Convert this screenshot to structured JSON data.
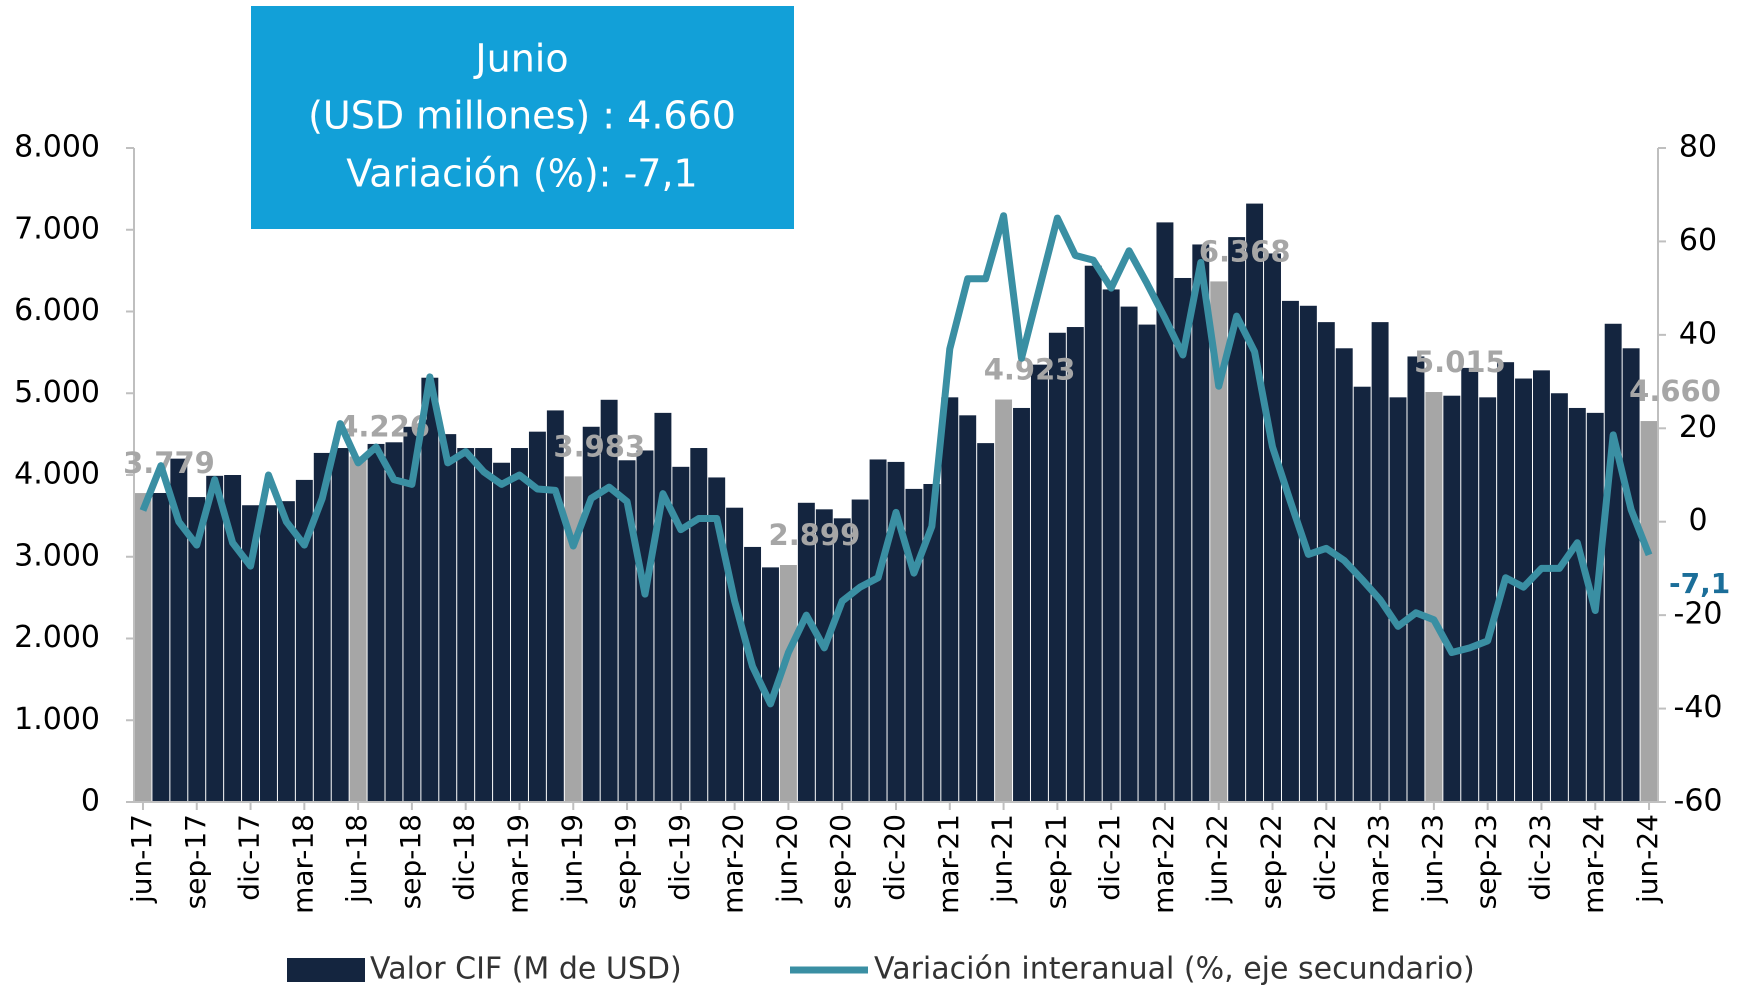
{
  "chart_data": {
    "type": "bar_line",
    "annotation": [
      "Junio",
      "(USD millones) : 4.660",
      "Variación (%): -7,1"
    ],
    "categories": [
      "jun-17",
      null,
      null,
      "sep-17",
      null,
      null,
      "dic-17",
      null,
      null,
      "mar-18",
      null,
      null,
      "jun-18",
      null,
      null,
      "sep-18",
      null,
      null,
      "dic-18",
      null,
      null,
      "mar-19",
      null,
      null,
      "jun-19",
      null,
      null,
      "sep-19",
      null,
      null,
      "dic-19",
      null,
      null,
      "mar-20",
      null,
      null,
      "jun-20",
      null,
      null,
      "sep-20",
      null,
      null,
      "dic-20",
      null,
      null,
      "mar-21",
      null,
      null,
      "jun-21",
      null,
      null,
      "sep-21",
      null,
      null,
      "dic-21",
      null,
      null,
      "mar-22",
      null,
      null,
      "jun-22",
      null,
      null,
      "sep-22",
      null,
      null,
      "dic-22",
      null,
      null,
      "mar-23",
      null,
      null,
      "jun-23",
      null,
      null,
      "sep-23",
      null,
      null,
      "dic-23",
      null,
      null,
      "mar-24",
      null,
      null,
      "jun-24"
    ],
    "series": [
      {
        "name": "Valor CIF (M de USD)",
        "color": "#14253f",
        "highlight_color": "#a6a6a6",
        "values": [
          3779,
          3780,
          4200,
          3730,
          3990,
          4000,
          3630,
          3630,
          3680,
          3940,
          4270,
          4330,
          4226,
          4380,
          4400,
          4590,
          5190,
          4500,
          4330,
          4330,
          4150,
          4330,
          4530,
          4790,
          3983,
          4590,
          4920,
          4180,
          4300,
          4760,
          4100,
          4330,
          3970,
          3600,
          3120,
          2870,
          2899,
          3660,
          3580,
          3470,
          3700,
          4190,
          4160,
          3830,
          3890,
          4950,
          4730,
          4390,
          4923,
          4820,
          5350,
          5740,
          5810,
          6560,
          6270,
          6060,
          5840,
          7090,
          6410,
          6820,
          6368,
          6910,
          7320,
          6710,
          6130,
          6070,
          5870,
          5550,
          5080,
          5870,
          4950,
          5450,
          5015,
          4970,
          5310,
          4950,
          5380,
          5180,
          5280,
          5000,
          4820,
          4760,
          5850,
          5550,
          4660
        ],
        "value_labels": [
          "3.779",
          null,
          null,
          null,
          null,
          null,
          null,
          null,
          null,
          null,
          null,
          null,
          "4.226",
          null,
          null,
          null,
          null,
          null,
          null,
          null,
          null,
          null,
          null,
          null,
          "3.983",
          null,
          null,
          null,
          null,
          null,
          null,
          null,
          null,
          null,
          null,
          null,
          "2.899",
          null,
          null,
          null,
          null,
          null,
          null,
          null,
          null,
          null,
          null,
          null,
          "4.923",
          null,
          null,
          null,
          null,
          null,
          null,
          null,
          null,
          null,
          null,
          null,
          "6.368",
          null,
          null,
          null,
          null,
          null,
          null,
          null,
          null,
          null,
          null,
          null,
          "5.015",
          null,
          null,
          null,
          null,
          null,
          null,
          null,
          null,
          null,
          null,
          null,
          "4.660"
        ]
      },
      {
        "name": "Variación interanual (%, eje secundario)",
        "color": "#3a8fa3",
        "axis": "y2",
        "values": [
          2.4,
          12,
          0,
          -5,
          9,
          -4.5,
          -9.5,
          10,
          0,
          -5,
          5,
          21,
          12.6,
          16,
          9,
          8,
          31,
          12.6,
          15,
          10.7,
          8,
          10,
          7,
          6.7,
          -5.2,
          5,
          7.4,
          4.3,
          -15.5,
          6,
          -1.7,
          0.7,
          0.7,
          -17,
          -31,
          -39,
          -28,
          -20,
          -27,
          -17,
          -14,
          -12,
          2,
          -11,
          -1,
          37,
          52,
          52,
          65.5,
          35,
          50,
          65,
          57,
          56,
          50,
          58,
          51,
          43.6,
          35.7,
          55.5,
          29,
          44,
          36.4,
          16,
          4.3,
          -7,
          -5.7,
          -8.3,
          -12.4,
          -16.7,
          -22.4,
          -19.5,
          -21,
          -28,
          -27,
          -25.5,
          -12,
          -14,
          -10,
          -10,
          -4.5,
          -19,
          18.6,
          2.6,
          -7.1
        ],
        "value_labels": [
          null,
          null,
          null,
          null,
          null,
          null,
          null,
          null,
          null,
          null,
          null,
          null,
          null,
          null,
          null,
          null,
          null,
          null,
          null,
          null,
          null,
          null,
          null,
          null,
          null,
          null,
          null,
          null,
          null,
          null,
          null,
          null,
          null,
          null,
          null,
          null,
          null,
          null,
          null,
          null,
          null,
          null,
          null,
          null,
          null,
          null,
          null,
          null,
          null,
          null,
          null,
          null,
          null,
          null,
          null,
          null,
          null,
          null,
          null,
          null,
          null,
          null,
          null,
          null,
          null,
          null,
          null,
          null,
          null,
          null,
          null,
          null,
          null,
          null,
          null,
          null,
          null,
          null,
          null,
          null,
          null,
          null,
          null,
          null,
          "-7,1"
        ]
      }
    ],
    "ylim": [
      0,
      8000
    ],
    "yticks": [
      0,
      {
        "value": 1000,
        "label": "1.000"
      },
      {
        "value": 2000,
        "label": "2.000"
      },
      {
        "value": 3000,
        "label": "3.000"
      },
      {
        "value": 4000,
        "label": "4.000"
      },
      {
        "value": 5000,
        "label": "5.000"
      },
      {
        "value": 6000,
        "label": "6.000"
      },
      {
        "value": 7000,
        "label": "7.000"
      },
      {
        "value": 8000,
        "label": "8.000"
      }
    ],
    "y2lim": [
      -60,
      80
    ],
    "y2ticks": [
      -60,
      -40,
      -20,
      0,
      20,
      40,
      60,
      80
    ],
    "legend": "bottom"
  }
}
